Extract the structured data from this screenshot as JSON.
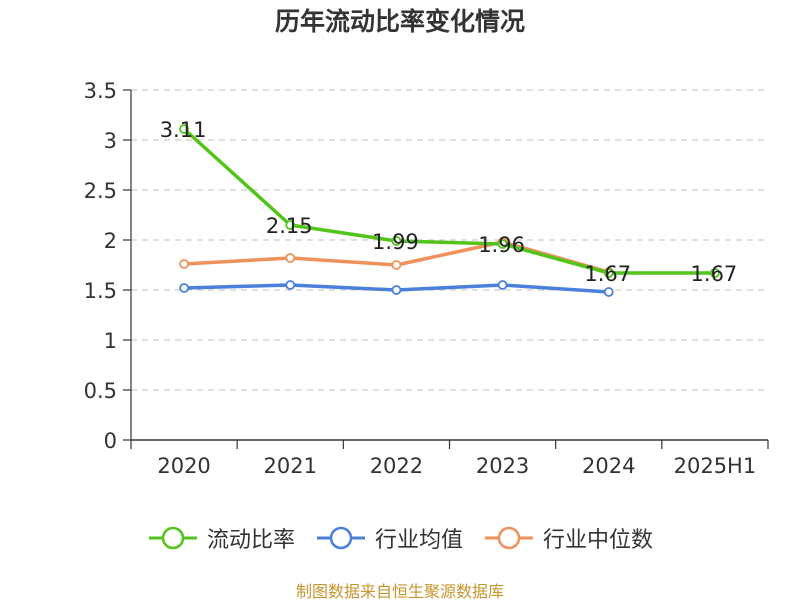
{
  "chart_data": {
    "type": "line",
    "title": "历年流动比率变化情况",
    "categories": [
      "2020",
      "2021",
      "2022",
      "2023",
      "2024",
      "2025H1"
    ],
    "y_ticks": [
      "0",
      "0.5",
      "1",
      "1.5",
      "2",
      "2.5",
      "3",
      "3.5"
    ],
    "ylim": [
      0,
      3.5
    ],
    "grid": "horizontal dashed",
    "legend_position": "bottom",
    "series": [
      {
        "name": "流动比率",
        "color": "#52c41a",
        "values": [
          3.11,
          2.15,
          1.99,
          1.96,
          1.67,
          1.67
        ],
        "data_labels": [
          "3.11",
          "2.15",
          "1.99",
          "1.96",
          "1.67",
          "1.67"
        ]
      },
      {
        "name": "行业均值",
        "color": "#4a7fdc",
        "values": [
          1.52,
          1.55,
          1.5,
          1.55,
          1.48,
          null
        ]
      },
      {
        "name": "行业中位数",
        "color": "#f0905a",
        "values": [
          1.76,
          1.82,
          1.75,
          1.98,
          1.68,
          null
        ]
      }
    ]
  },
  "source": "制图数据来自恒生聚源数据库"
}
